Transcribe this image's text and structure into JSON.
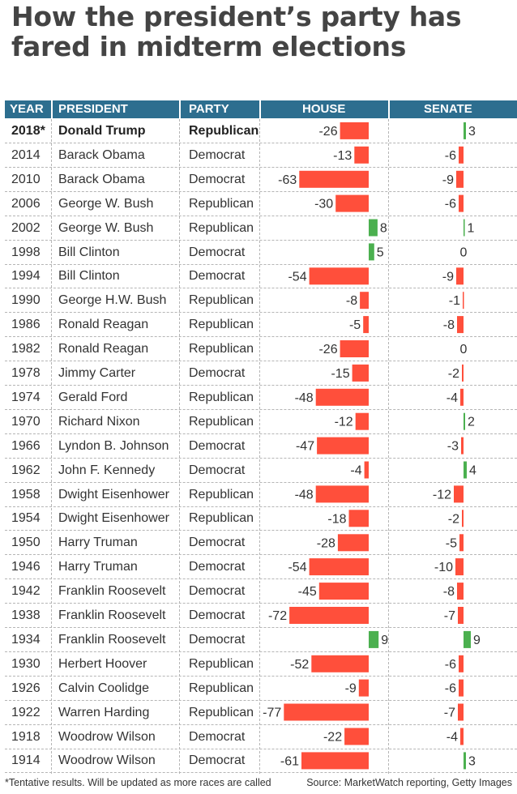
{
  "title": "How the president’s party has fared in midterm elections",
  "headers": {
    "year": "YEAR",
    "president": "PRESIDENT",
    "party": "PARTY",
    "house": "HOUSE",
    "senate": "SENATE"
  },
  "colors": {
    "header_bg": "#2d6e8f",
    "loss": "#ff4f3b",
    "gain": "#4bb04f",
    "title": "#444444"
  },
  "rows": [
    {
      "year": "2018*",
      "president": "Donald Trump",
      "party": "Republican",
      "bold": true
    },
    {
      "year": "2014",
      "president": "Barack Obama",
      "party": "Democrat"
    },
    {
      "year": "2010",
      "president": "Barack Obama",
      "party": "Democrat"
    },
    {
      "year": "2006",
      "president": "George W. Bush",
      "party": "Republican"
    },
    {
      "year": "2002",
      "president": "George W. Bush",
      "party": "Republican"
    },
    {
      "year": "1998",
      "president": "Bill Clinton",
      "party": "Democrat"
    },
    {
      "year": "1994",
      "president": "Bill Clinton",
      "party": "Democrat"
    },
    {
      "year": "1990",
      "president": "George H.W. Bush",
      "party": "Republican"
    },
    {
      "year": "1986",
      "president": "Ronald Reagan",
      "party": "Republican"
    },
    {
      "year": "1982",
      "president": "Ronald Reagan",
      "party": "Republican"
    },
    {
      "year": "1978",
      "president": "Jimmy Carter",
      "party": "Democrat"
    },
    {
      "year": "1974",
      "president": "Gerald Ford",
      "party": "Republican"
    },
    {
      "year": "1970",
      "president": "Richard Nixon",
      "party": "Republican"
    },
    {
      "year": "1966",
      "president": "Lyndon B. Johnson",
      "party": "Democrat"
    },
    {
      "year": "1962",
      "president": "John F. Kennedy",
      "party": "Democrat"
    },
    {
      "year": "1958",
      "president": "Dwight Eisenhower",
      "party": "Republican"
    },
    {
      "year": "1954",
      "president": "Dwight Eisenhower",
      "party": "Republican"
    },
    {
      "year": "1950",
      "president": "Harry Truman",
      "party": "Democrat"
    },
    {
      "year": "1946",
      "president": "Harry Truman",
      "party": "Democrat"
    },
    {
      "year": "1942",
      "president": "Franklin Roosevelt",
      "party": "Democrat"
    },
    {
      "year": "1938",
      "president": "Franklin Roosevelt",
      "party": "Democrat"
    },
    {
      "year": "1934",
      "president": "Franklin Roosevelt",
      "party": "Democrat"
    },
    {
      "year": "1930",
      "president": "Herbert Hoover",
      "party": "Republican"
    },
    {
      "year": "1926",
      "president": "Calvin Coolidge",
      "party": "Republican"
    },
    {
      "year": "1922",
      "president": "Warren Harding",
      "party": "Republican"
    },
    {
      "year": "1918",
      "president": "Woodrow Wilson",
      "party": "Democrat"
    },
    {
      "year": "1914",
      "president": "Woodrow Wilson",
      "party": "Democrat"
    }
  ],
  "chart_data": {
    "type": "bar",
    "categories": [
      "2018*",
      "2014",
      "2010",
      "2006",
      "2002",
      "1998",
      "1994",
      "1990",
      "1986",
      "1982",
      "1978",
      "1974",
      "1970",
      "1966",
      "1962",
      "1958",
      "1954",
      "1950",
      "1946",
      "1942",
      "1938",
      "1934",
      "1930",
      "1926",
      "1922",
      "1918",
      "1914"
    ],
    "series": [
      {
        "name": "HOUSE",
        "values": [
          -26,
          -13,
          -63,
          -30,
          8,
          5,
          -54,
          -8,
          -5,
          -26,
          -15,
          -48,
          -12,
          -47,
          -4,
          -48,
          -18,
          -28,
          -54,
          -45,
          -72,
          9,
          -52,
          -9,
          -77,
          -22,
          -61
        ]
      },
      {
        "name": "SENATE",
        "values": [
          3,
          -6,
          -9,
          -6,
          1,
          0,
          -9,
          -1,
          -8,
          0,
          -2,
          -4,
          2,
          -3,
          4,
          -12,
          -2,
          -5,
          -10,
          -8,
          -7,
          9,
          -6,
          -6,
          -7,
          -4,
          3
        ]
      }
    ],
    "title": "How the president’s party has fared in midterm elections",
    "orientation": "horizontal"
  },
  "footnote": "*Tentative results. Will be updated as more races are called",
  "source": "Source: MarketWatch reporting, Getty Images"
}
